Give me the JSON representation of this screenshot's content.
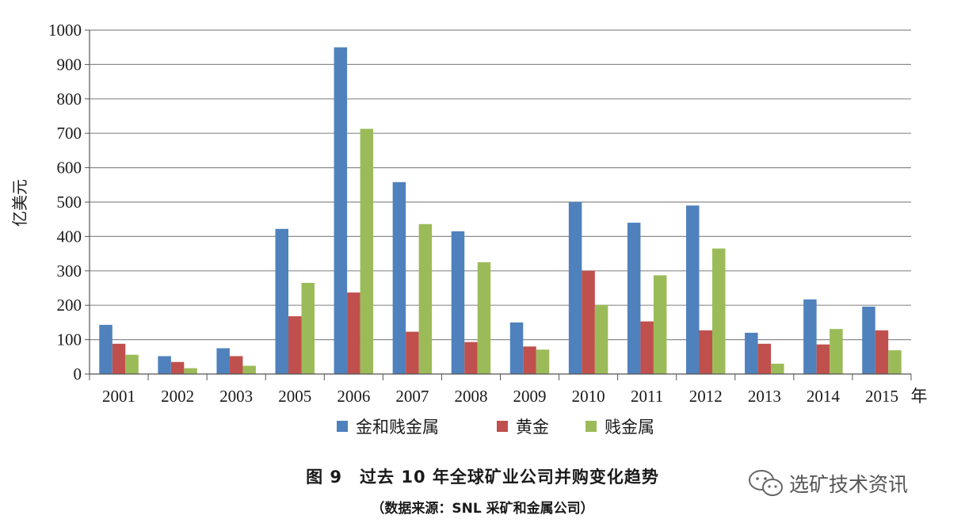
{
  "chart_data": {
    "type": "bar",
    "ylabel": "亿美元",
    "xunit": "年",
    "ylim": [
      0,
      1000
    ],
    "yticks": [
      0,
      100,
      200,
      300,
      400,
      500,
      600,
      700,
      800,
      900,
      1000
    ],
    "grid": true,
    "legend_position": "bottom",
    "categories": [
      "2001",
      "2002",
      "2003",
      "2005",
      "2006",
      "2007",
      "2008",
      "2009",
      "2010",
      "2011",
      "2012",
      "2013",
      "2014",
      "2015"
    ],
    "series": [
      {
        "name": "金和贱金属",
        "color": "#4f81bd",
        "values": [
          143,
          52,
          75,
          422,
          950,
          558,
          415,
          150,
          500,
          440,
          490,
          120,
          217,
          196
        ]
      },
      {
        "name": "黄金",
        "color": "#c0504d",
        "values": [
          88,
          35,
          52,
          168,
          237,
          123,
          93,
          80,
          300,
          153,
          127,
          88,
          86,
          127
        ]
      },
      {
        "name": "贱金属",
        "color": "#9bbb59",
        "values": [
          56,
          17,
          24,
          265,
          713,
          436,
          325,
          71,
          201,
          287,
          365,
          30,
          131,
          69
        ]
      }
    ]
  },
  "caption": {
    "title": "图 9　过去 10 年全球矿业公司并购变化趋势",
    "source": "（数据来源：SNL 采矿和金属公司）"
  },
  "watermark": {
    "icon": "wechat-icon",
    "text": "选矿技术资讯"
  }
}
